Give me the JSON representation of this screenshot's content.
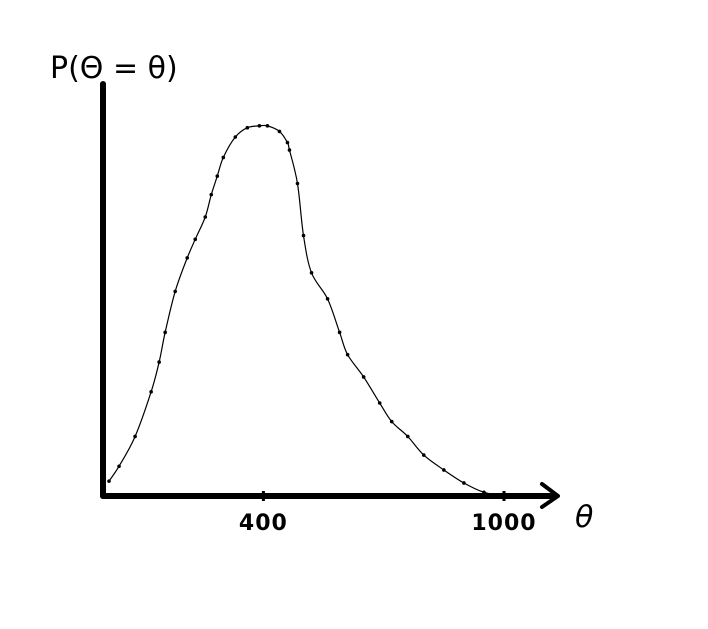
{
  "chart_data": {
    "type": "line",
    "title": "",
    "xlabel": "θ",
    "ylabel": "P(Θ = θ)",
    "xlim": [
      0,
      1100
    ],
    "ylim": [
      0,
      1
    ],
    "grid": false,
    "legend": "none",
    "x_ticks": [
      {
        "value": 400,
        "label": "400"
      },
      {
        "value": 1000,
        "label": "1000"
      }
    ],
    "series": [
      {
        "x": [
          15,
          40,
          80,
          120,
          140,
          155,
          180,
          210,
          230,
          255,
          270,
          285,
          300,
          330,
          360,
          390,
          410,
          440,
          460,
          465,
          485,
          500,
          520,
          560,
          590,
          610,
          650,
          690,
          720,
          760,
          800,
          850,
          900,
          950,
          1000
        ],
        "y": [
          0.04,
          0.08,
          0.16,
          0.28,
          0.36,
          0.44,
          0.55,
          0.64,
          0.69,
          0.75,
          0.81,
          0.86,
          0.91,
          0.965,
          0.99,
          0.995,
          0.995,
          0.98,
          0.95,
          0.93,
          0.84,
          0.7,
          0.6,
          0.53,
          0.44,
          0.38,
          0.32,
          0.25,
          0.2,
          0.16,
          0.11,
          0.07,
          0.035,
          0.01,
          0.0
        ],
        "color": "#000000",
        "markers": true
      }
    ]
  }
}
